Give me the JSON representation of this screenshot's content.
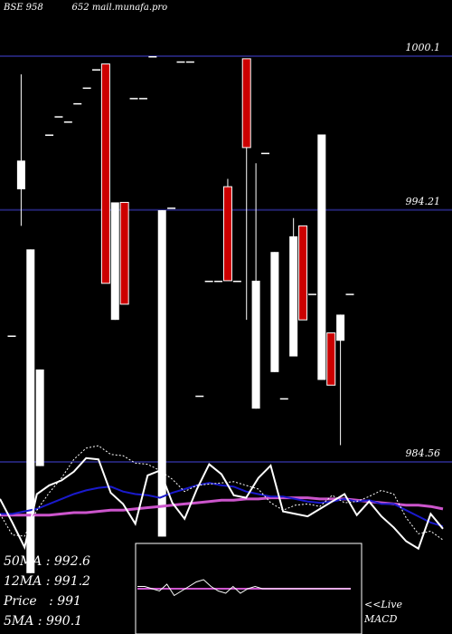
{
  "title": "BSE 958          652 mail.munafa.pro",
  "price_labels": [
    {
      "value": "1000.1"
    },
    {
      "value": "994.21"
    },
    {
      "value": "984.56"
    }
  ],
  "stats": [
    {
      "text": "50MA : 992.6"
    },
    {
      "text": "12MA : 991.2"
    },
    {
      "text": "Price   : 991"
    },
    {
      "text": "5MA : 990.1"
    }
  ],
  "live_label": "<<Live",
  "macd_label": "MACD",
  "colors": {
    "background": "#000000",
    "grid": "#22226e",
    "bull": "#ffffff",
    "bear": "#cc0000",
    "ma_long": "#cc55cc",
    "ma_mid": "#1a1acc",
    "ma_short": "#ffffff",
    "macd_signal": "#cc55cc",
    "macd_line": "#ffffff"
  },
  "chart_data": {
    "type": "candlestick",
    "y_axis_levels": [
      1000.1,
      994.21,
      984.56
    ],
    "ylim": [
      980.4,
      1003.7
    ],
    "candles": [
      {
        "o": 989.4,
        "h": 989.4,
        "l": 989.4,
        "c": 989.4
      },
      {
        "o": 995.0,
        "h": 999.4,
        "l": 993.6,
        "c": 996.1
      },
      {
        "o": 980.3,
        "h": 992.7,
        "l": 980.3,
        "c": 992.7
      },
      {
        "o": 984.4,
        "h": 988.1,
        "l": 984.4,
        "c": 988.1
      },
      {
        "o": 997.1,
        "h": 997.1,
        "l": 997.1,
        "c": 997.1
      },
      {
        "o": 997.8,
        "h": 997.8,
        "l": 997.8,
        "c": 997.8
      },
      {
        "o": 997.6,
        "h": 997.6,
        "l": 997.6,
        "c": 997.6
      },
      {
        "o": 998.3,
        "h": 998.3,
        "l": 998.3,
        "c": 998.3
      },
      {
        "o": 998.9,
        "h": 998.9,
        "l": 998.9,
        "c": 998.9
      },
      {
        "o": 999.6,
        "h": 999.6,
        "l": 999.6,
        "c": 999.6
      },
      {
        "o": 999.8,
        "h": 999.8,
        "l": 991.4,
        "c": 991.4
      },
      {
        "o": 990.0,
        "h": 994.5,
        "l": 990.0,
        "c": 994.5
      },
      {
        "o": 994.5,
        "h": 994.5,
        "l": 990.6,
        "c": 990.6
      },
      {
        "o": 998.5,
        "h": 998.5,
        "l": 998.5,
        "c": 998.5
      },
      {
        "o": 998.5,
        "h": 998.5,
        "l": 998.5,
        "c": 998.5
      },
      {
        "o": 1000.1,
        "h": 1000.1,
        "l": 1000.1,
        "c": 1000.1
      },
      {
        "o": 981.7,
        "h": 994.2,
        "l": 981.7,
        "c": 994.2
      },
      {
        "o": 994.3,
        "h": 994.3,
        "l": 994.3,
        "c": 994.3
      },
      {
        "o": 999.9,
        "h": 999.9,
        "l": 999.9,
        "c": 999.9
      },
      {
        "o": 999.9,
        "h": 999.9,
        "l": 999.9,
        "c": 999.9
      },
      {
        "o": 987.1,
        "h": 987.1,
        "l": 987.1,
        "c": 987.1
      },
      {
        "o": 991.5,
        "h": 991.5,
        "l": 991.5,
        "c": 991.5
      },
      {
        "o": 991.5,
        "h": 991.5,
        "l": 991.5,
        "c": 991.5
      },
      {
        "o": 995.1,
        "h": 995.4,
        "l": 991.5,
        "c": 991.5
      },
      {
        "o": 991.5,
        "h": 991.5,
        "l": 991.5,
        "c": 991.5
      },
      {
        "o": 1000.0,
        "h": 1000.0,
        "l": 990.0,
        "c": 996.6
      },
      {
        "o": 986.6,
        "h": 996.0,
        "l": 986.6,
        "c": 991.5
      },
      {
        "o": 996.4,
        "h": 996.4,
        "l": 996.4,
        "c": 996.4
      },
      {
        "o": 988.0,
        "h": 992.6,
        "l": 988.0,
        "c": 992.6
      },
      {
        "o": 987.0,
        "h": 987.0,
        "l": 987.0,
        "c": 987.0
      },
      {
        "o": 988.6,
        "h": 993.9,
        "l": 988.6,
        "c": 993.2
      },
      {
        "o": 993.6,
        "h": 993.6,
        "l": 990.0,
        "c": 990.0
      },
      {
        "o": 991.0,
        "h": 991.0,
        "l": 991.0,
        "c": 991.0
      },
      {
        "o": 987.7,
        "h": 997.1,
        "l": 987.7,
        "c": 997.1
      },
      {
        "o": 989.5,
        "h": 989.5,
        "l": 987.5,
        "c": 987.5
      },
      {
        "o": 989.2,
        "h": 990.2,
        "l": 985.2,
        "c": 990.2
      },
      {
        "o": 991.0,
        "h": 991.0,
        "l": 991.0,
        "c": 991.0
      }
    ],
    "moving_averages": [
      {
        "name": "50MA",
        "color": "#cc55cc",
        "values": [
          992.1,
          992.1,
          992.1,
          992.1,
          992.1,
          992.2,
          992.3,
          992.3,
          992.4,
          992.5,
          992.5,
          992.6,
          992.7,
          992.8,
          992.9,
          993.0,
          993.1,
          993.2,
          993.3,
          993.3,
          993.4,
          993.4,
          993.5,
          993.5,
          993.5,
          993.5,
          993.4,
          993.4,
          993.4,
          993.3,
          993.2,
          993.1,
          993.0,
          992.9,
          992.9,
          992.8,
          992.6
        ]
      },
      {
        "name": "12MA",
        "color": "#1a1acc",
        "values": [
          992.2,
          992.2,
          992.4,
          992.6,
          993.0,
          993.4,
          993.8,
          994.1,
          994.3,
          994.4,
          994.0,
          993.8,
          993.7,
          993.5,
          993.9,
          994.2,
          994.5,
          994.7,
          994.5,
          994.4,
          994.0,
          993.8,
          993.6,
          993.6,
          993.4,
          993.2,
          993.1,
          993.2,
          993.4,
          993.2,
          993.3,
          993.0,
          993.0,
          992.5,
          992.0,
          991.5,
          991.2
        ]
      },
      {
        "name": "5MA",
        "color": "#ffffff",
        "values": [
          992.2,
          990.5,
          990.4,
          992.5,
          993.9,
          995.1,
          996.6,
          997.5,
          997.7,
          997.0,
          996.9,
          996.3,
          996.2,
          995.7,
          995.0,
          994.0,
          994.5,
          994.6,
          994.7,
          994.8,
          994.5,
          994.2,
          993.1,
          992.5,
          992.9,
          993.0,
          992.8,
          993.7,
          993.1,
          993.2,
          993.6,
          994.1,
          993.8,
          991.9,
          990.6,
          990.8,
          990.1
        ]
      },
      {
        "name": "price",
        "color": "#ffffff",
        "values": [
          993.4,
          991.5,
          989.5,
          993.8,
          994.5,
          994.9,
          995.6,
          996.7,
          996.6,
          993.9,
          993.0,
          991.4,
          995.3,
          995.7,
          993.1,
          991.8,
          994.2,
          996.2,
          995.4,
          993.7,
          993.5,
          995.1,
          996.1,
          992.4,
          992.2,
          992.0,
          992.6,
          993.2,
          993.8,
          992.1,
          993.2,
          992.0,
          991.1,
          990.0,
          989.4,
          992.2,
          991.0
        ]
      }
    ],
    "macd": {
      "signal": [
        0,
        0,
        0,
        0,
        0,
        0,
        0,
        0,
        0,
        0,
        0,
        0,
        0,
        0,
        0,
        0,
        0,
        0,
        0,
        0,
        0,
        0,
        0,
        0,
        0,
        0,
        0,
        0,
        0,
        0
      ],
      "macd": [
        0.1,
        0.1,
        0.0,
        -0.1,
        0.2,
        -0.3,
        -0.1,
        0.1,
        0.3,
        0.4,
        0.1,
        -0.1,
        -0.2,
        0.1,
        -0.2,
        0.0,
        0.1,
        0.0,
        0.0,
        0.0,
        0.0,
        0.0,
        0.0,
        0.0,
        0.0,
        0.0,
        0.0,
        0.0,
        0.0,
        0.0
      ]
    }
  }
}
